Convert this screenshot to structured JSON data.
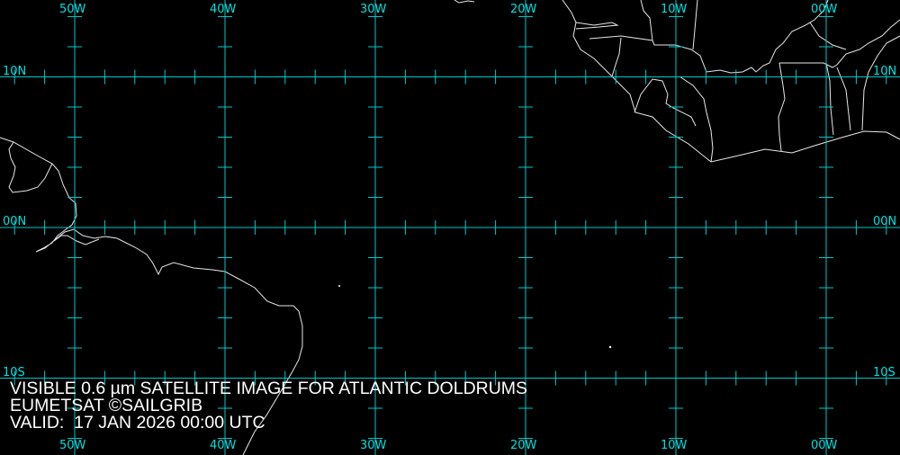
{
  "map": {
    "projection": "equirectangular",
    "lon_range": [
      -55,
      5
    ],
    "lat_range": [
      15,
      -15
    ],
    "grid_color": "#00c8c8",
    "label_color": "#00e0e0",
    "coast_color": "#ffffff",
    "background": "#000000",
    "longitude_lines": [
      {
        "lon": -50,
        "label": "50W"
      },
      {
        "lon": -40,
        "label": "40W"
      },
      {
        "lon": -30,
        "label": "30W"
      },
      {
        "lon": -20,
        "label": "20W"
      },
      {
        "lon": -10,
        "label": "10W"
      },
      {
        "lon": 0,
        "label": "00W"
      }
    ],
    "latitude_lines": [
      {
        "lat": 10,
        "label": "10N"
      },
      {
        "lat": 0,
        "label": "00N"
      },
      {
        "lat": -10,
        "label": "10S"
      }
    ],
    "tick_interval_deg": 2
  },
  "caption": {
    "line1": "VISIBLE 0.6 µm SATELLITE IMAGE FOR ATLANTIC DOLDRUMS",
    "line2": "EUMETSAT ©SAILGRIB",
    "line3": "VALID:  17 JAN 2026 00:00 UTC"
  }
}
